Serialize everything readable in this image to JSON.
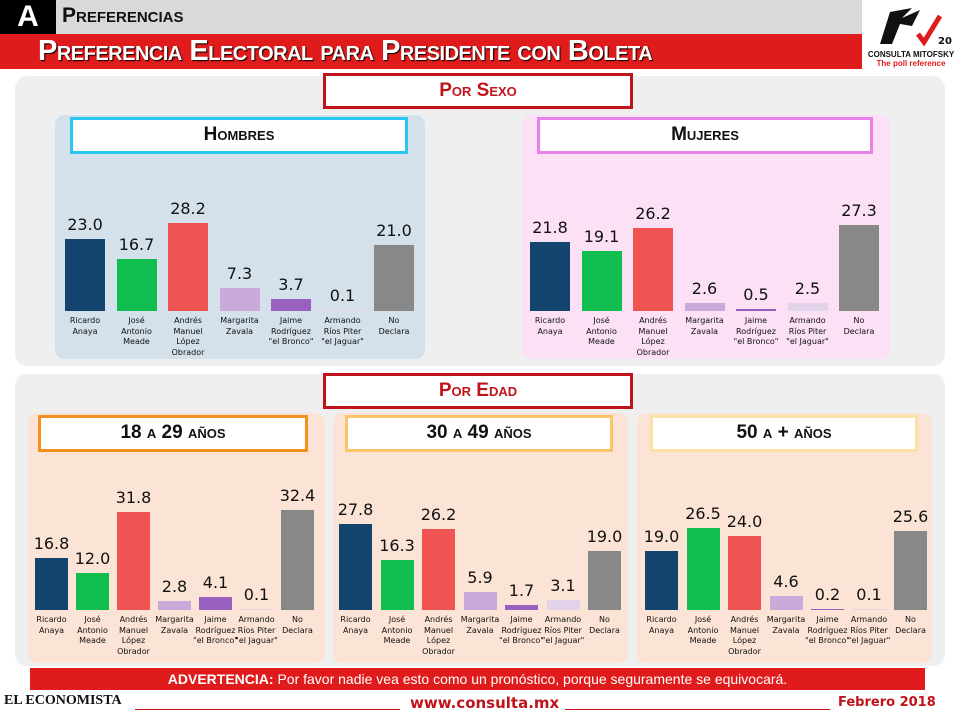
{
  "header": {
    "section_letter": "A",
    "section": "Preferencias",
    "title": "Preferencia Electoral para Presidente con Boleta"
  },
  "logo": {
    "brand": "CONSULTA MITOFSKY",
    "tagline": "The poll reference",
    "badge": "20 años"
  },
  "groups": {
    "sexo": "Por Sexo",
    "edad": "Por Edad"
  },
  "candidates": [
    "Ricardo Anaya",
    "José Antonio Meade",
    "Andrés Manuel López Obrador",
    "Margarita Zavala",
    "Jaime Rodríguez \"el Bronco\"",
    "Armando Ríos Piter \"el Jaguar\"",
    "No Declara"
  ],
  "colors": [
    "#12446d",
    "#10bd4f",
    "#ef5452",
    "#cba9da",
    "#9a60bf",
    "#e2d3ea",
    "#888888"
  ],
  "chart_data": [
    {
      "type": "bar",
      "title": "Hombres",
      "categories": [
        "Ricardo Anaya",
        "José Antonio Meade",
        "Andrés Manuel López Obrador",
        "Margarita Zavala",
        "Jaime Rodríguez \"el Bronco\"",
        "Armando Ríos Piter \"el Jaguar\"",
        "No Declara"
      ],
      "values": [
        23.0,
        16.7,
        28.2,
        7.3,
        3.7,
        0.1,
        21.0
      ]
    },
    {
      "type": "bar",
      "title": "Mujeres",
      "categories": [
        "Ricardo Anaya",
        "José Antonio Meade",
        "Andrés Manuel López Obrador",
        "Margarita Zavala",
        "Jaime Rodríguez \"el Bronco\"",
        "Armando Ríos Piter \"el Jaguar\"",
        "No Declara"
      ],
      "values": [
        21.8,
        19.1,
        26.2,
        2.6,
        0.5,
        2.5,
        27.3
      ]
    },
    {
      "type": "bar",
      "title": "18 a 29 años",
      "categories": [
        "Ricardo Anaya",
        "José Antonio Meade",
        "Andrés Manuel López Obrador",
        "Margarita Zavala",
        "Jaime Rodríguez \"el Bronco\"",
        "Armando Ríos Piter \"el Jaguar\"",
        "No Declara"
      ],
      "values": [
        16.8,
        12.0,
        31.8,
        2.8,
        4.1,
        0.1,
        32.4
      ]
    },
    {
      "type": "bar",
      "title": "30 a 49 años",
      "categories": [
        "Ricardo Anaya",
        "José Antonio Meade",
        "Andrés Manuel López Obrador",
        "Margarita Zavala",
        "Jaime Rodríguez \"el Bronco\"",
        "Armando Ríos Piter \"el Jaguar\"",
        "No Declara"
      ],
      "values": [
        27.8,
        16.3,
        26.2,
        5.9,
        1.7,
        3.1,
        19.0
      ]
    },
    {
      "type": "bar",
      "title": "50 a + años",
      "categories": [
        "Ricardo Anaya",
        "José Antonio Meade",
        "Andrés Manuel López Obrador",
        "Margarita Zavala",
        "Jaime Rodríguez \"el Bronco\"",
        "Armando Ríos Piter \"el Jaguar\"",
        "No Declara"
      ],
      "values": [
        19.0,
        26.5,
        24.0,
        4.6,
        0.2,
        0.1,
        25.6
      ]
    }
  ],
  "labels": [
    [
      "Ricardo",
      "Anaya"
    ],
    [
      "José",
      "Antonio",
      "Meade"
    ],
    [
      "Andrés",
      "Manuel",
      "López",
      "Obrador"
    ],
    [
      "Margarita",
      "Zavala"
    ],
    [
      "Jaime",
      "Rodríguez",
      "\"el Bronco\""
    ],
    [
      "Armando",
      "Ríos Piter",
      "\"el Jaguar\""
    ],
    [
      "No",
      "Declara"
    ]
  ],
  "footer": {
    "warning_label": "ADVERTENCIA:",
    "warning_text": " Por favor nadie vea esto como un pronóstico, porque seguramente se equivocará.",
    "source": "EL ECONOMISTA",
    "url": "www.consulta.mx",
    "date": "Febrero 2018"
  }
}
